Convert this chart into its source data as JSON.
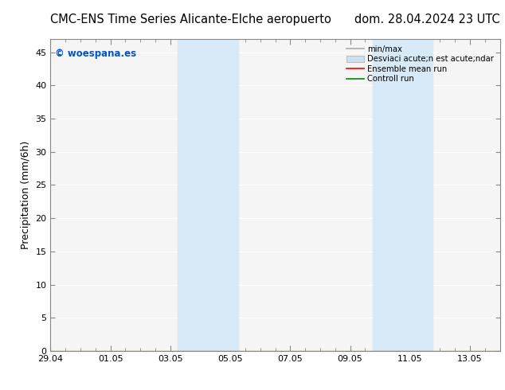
{
  "title_left": "CMC-ENS Time Series Alicante-Elche aeropuerto",
  "title_right": "dom. 28.04.2024 23 UTC",
  "ylabel": "Precipitation (mm/6h)",
  "watermark": "© woespana.es",
  "watermark_color": "#0055cc",
  "ylim": [
    0,
    47
  ],
  "yticks": [
    0,
    5,
    10,
    15,
    20,
    25,
    30,
    35,
    40,
    45
  ],
  "xlim": [
    0,
    15
  ],
  "xtick_labels": [
    "29.04",
    "01.05",
    "03.05",
    "05.05",
    "07.05",
    "09.05",
    "11.05",
    "13.05"
  ],
  "xtick_positions_days": [
    0,
    2,
    4,
    6,
    8,
    10,
    12,
    14
  ],
  "shaded_bands": [
    {
      "x_start_day": 4.25,
      "x_end_day": 6.25,
      "color": "#d8eaf8"
    },
    {
      "x_start_day": 10.75,
      "x_end_day": 12.75,
      "color": "#d8eaf8"
    }
  ],
  "background_color": "#ffffff",
  "plot_bg_color": "#f5f5f5",
  "grid_color": "#ffffff",
  "spine_color": "#888888",
  "title_fontsize": 10.5,
  "axis_fontsize": 9,
  "tick_fontsize": 8,
  "legend_label1": "min/max",
  "legend_label2": "Desviaci acute;n est acute;ndar",
  "legend_label3": "Ensemble mean run",
  "legend_label4": "Controll run",
  "legend_color1": "#aaaaaa",
  "legend_color2": "#cce0f0",
  "legend_color3": "#ff0000",
  "legend_color4": "#008800"
}
